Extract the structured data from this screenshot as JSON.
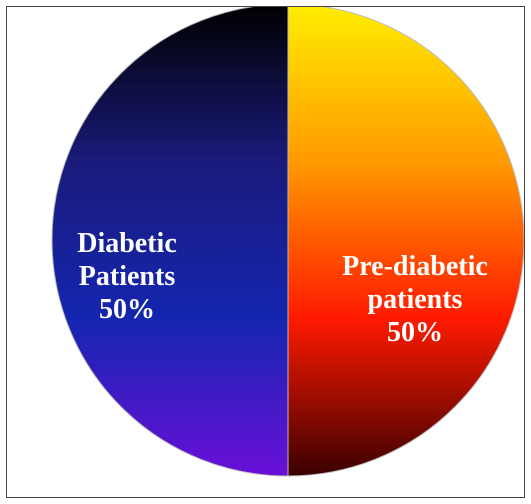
{
  "chart_data": {
    "type": "pie",
    "title": "",
    "slices": [
      {
        "label_lines": [
          "Diabetic",
          "Patients"
        ],
        "value_label": "50%",
        "value": 50,
        "gradient_colors": [
          "#000000",
          "#1a1a7a",
          "#1426b0",
          "#6a0fd8"
        ]
      },
      {
        "label_lines": [
          "Pre-diabetic",
          "patients"
        ],
        "value_label": "50%",
        "value": 50,
        "gradient_colors": [
          "#ffee00",
          "#ff9a00",
          "#ff1a00",
          "#3a0000"
        ]
      }
    ]
  }
}
